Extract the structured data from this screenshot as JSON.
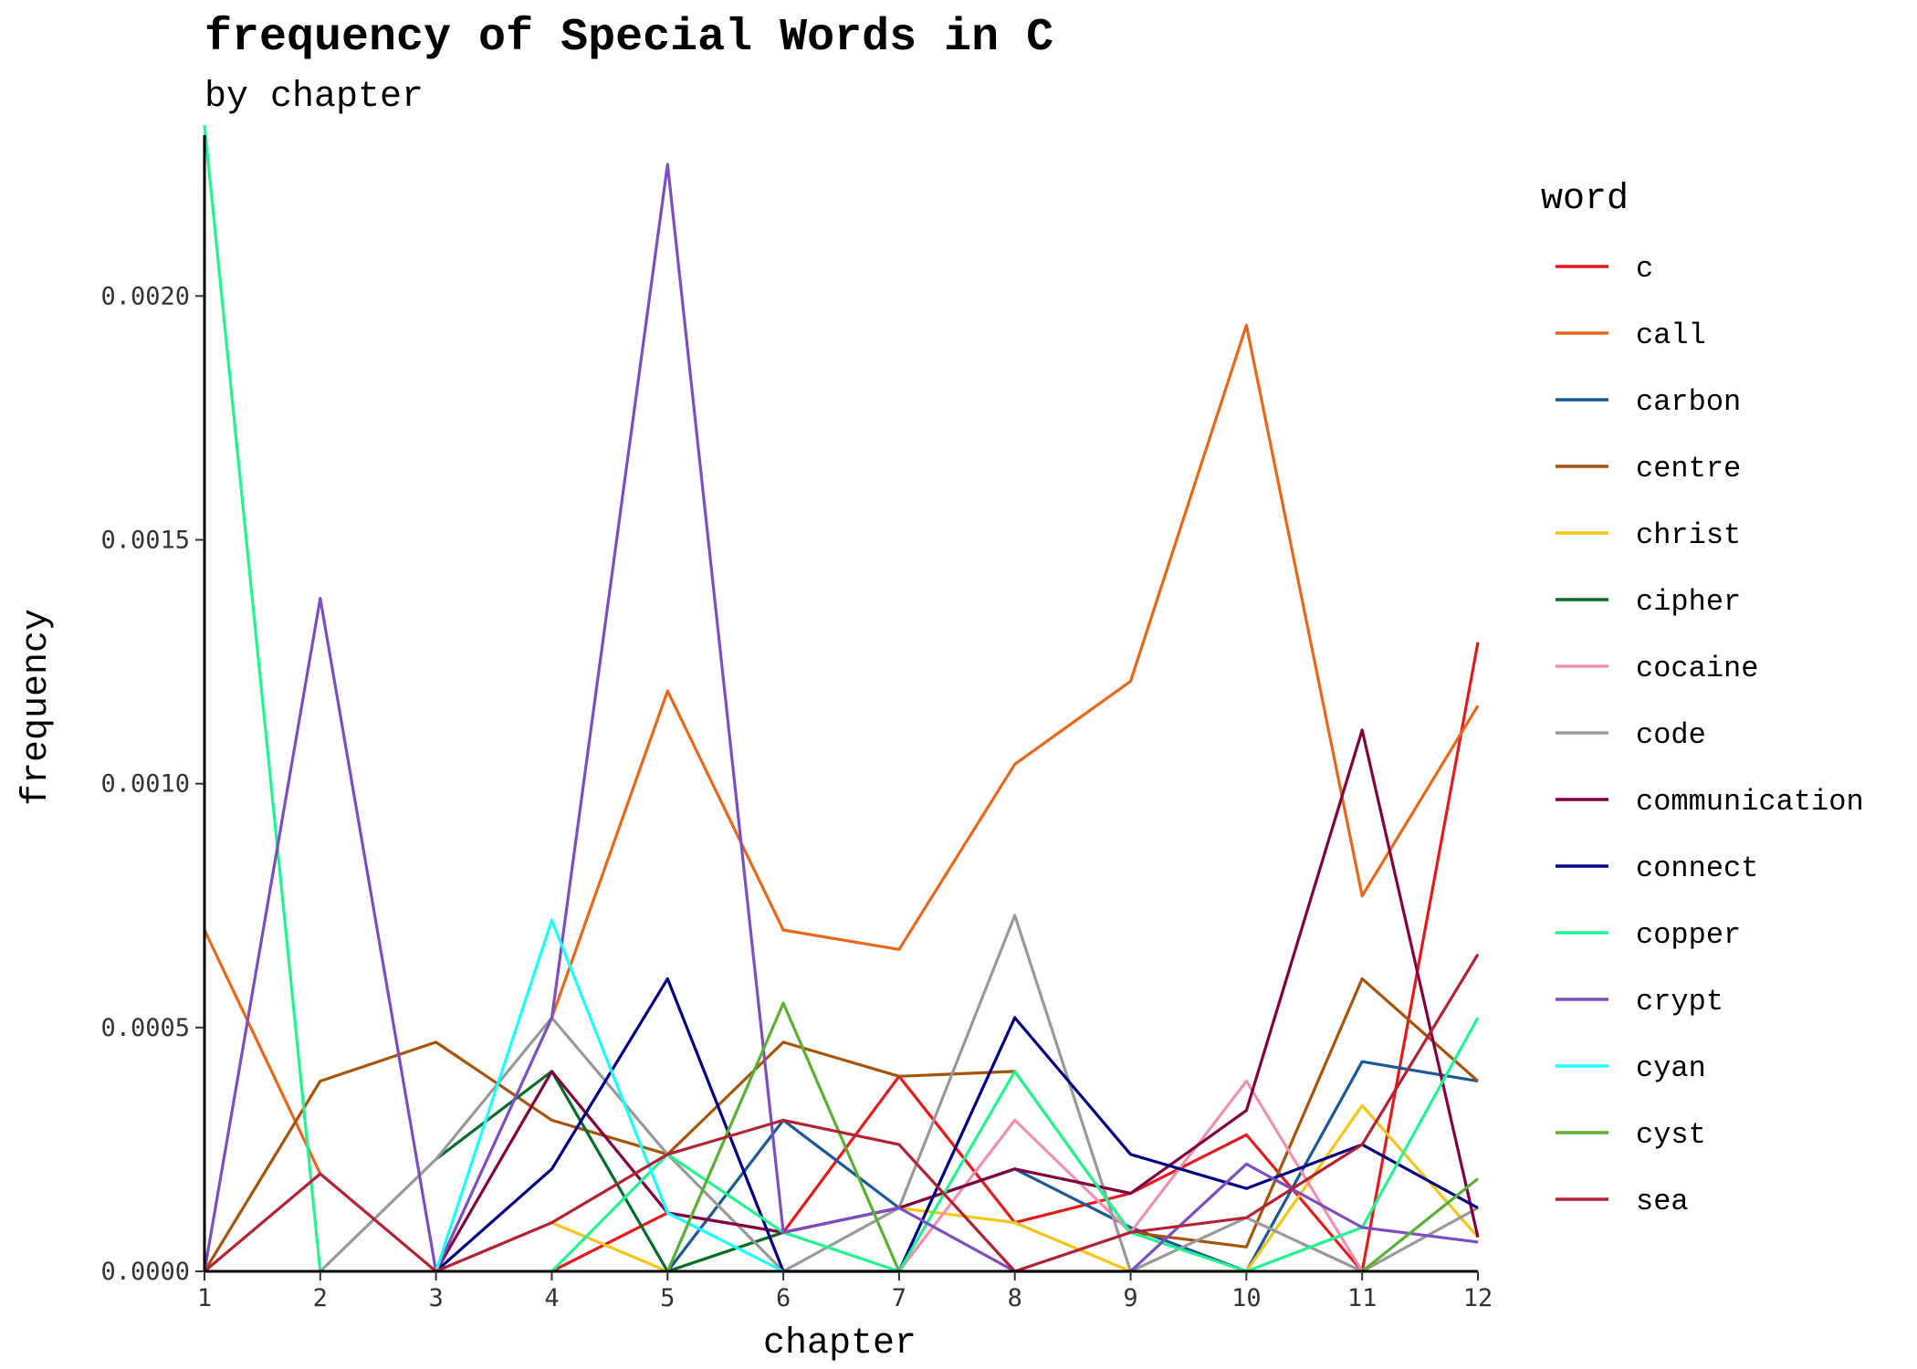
{
  "chart_data": {
    "type": "line",
    "title": "frequency of Special Words in C",
    "subtitle": "by chapter",
    "xlabel": "chapter",
    "ylabel": "frequency",
    "legend_title": "word",
    "legend_position": "right",
    "grid": false,
    "x": [
      1,
      2,
      3,
      4,
      5,
      6,
      7,
      8,
      9,
      10,
      11,
      12
    ],
    "xlim": [
      1,
      12
    ],
    "ylim": [
      0,
      0.00233
    ],
    "x_ticks": [
      "1",
      "2",
      "3",
      "4",
      "5",
      "6",
      "7",
      "8",
      "9",
      "10",
      "11",
      "12"
    ],
    "y_ticks": [
      {
        "value": 0,
        "label": "0.0000"
      },
      {
        "value": 0.0005,
        "label": "0.0005"
      },
      {
        "value": 0.001,
        "label": "0.0010"
      },
      {
        "value": 0.0015,
        "label": "0.0015"
      },
      {
        "value": 0.002,
        "label": "0.0020"
      }
    ],
    "series": [
      {
        "name": "c",
        "color": "#e41a1c",
        "values": [
          0,
          null,
          null,
          0,
          0.00012,
          8e-05,
          0.0004,
          0.0001,
          0.00016,
          0.00028,
          0,
          0.00129
        ]
      },
      {
        "name": "call",
        "color": "#e8681a",
        "values": [
          0.0007,
          0.0002,
          null,
          0.00052,
          0.00119,
          0.0007,
          0.00066,
          0.00104,
          0.00121,
          0.00194,
          0.00077,
          0.00116
        ]
      },
      {
        "name": "carbon",
        "color": "#1a5896",
        "values": [
          null,
          null,
          null,
          null,
          0,
          0.00031,
          0.00013,
          0.00021,
          9e-05,
          0,
          0.00043,
          0.00039
        ]
      },
      {
        "name": "centre",
        "color": "#a65409",
        "values": [
          0,
          0.00039,
          0.00047,
          0.00031,
          0.00024,
          0.00047,
          0.0004,
          0.00041,
          8e-05,
          5e-05,
          0.0006,
          0.00039
        ]
      },
      {
        "name": "christ",
        "color": "#f5c518",
        "values": [
          null,
          null,
          null,
          0.0001,
          0,
          8e-05,
          0.00013,
          0.0001,
          0,
          0,
          0.00034,
          7e-05
        ]
      },
      {
        "name": "cipher",
        "color": "#006d2c",
        "values": [
          null,
          null,
          0.00023,
          0.00041,
          0,
          8e-05,
          null,
          null,
          null,
          null,
          null,
          null
        ]
      },
      {
        "name": "cocaine",
        "color": "#f090b0",
        "values": [
          null,
          null,
          null,
          null,
          null,
          null,
          0,
          0.00031,
          8e-05,
          0.00039,
          0,
          null
        ]
      },
      {
        "name": "code",
        "color": "#999999",
        "values": [
          null,
          0,
          0.00023,
          0.00052,
          0.00024,
          0,
          0.00013,
          0.00073,
          0,
          0.00011,
          0,
          0.00013
        ]
      },
      {
        "name": "communication",
        "color": "#800040",
        "values": [
          null,
          null,
          0,
          0.00041,
          0.00012,
          8e-05,
          0.00013,
          0.00021,
          0.00016,
          0.00033,
          0.00111,
          7e-05
        ]
      },
      {
        "name": "connect",
        "color": "#000080",
        "values": [
          null,
          null,
          0,
          0.00021,
          0.0006,
          0,
          0,
          0.00052,
          0.00024,
          0.00017,
          0.00026,
          0.00013
        ]
      },
      {
        "name": "copper",
        "color": "#22f590",
        "values": [
          0.00235,
          0,
          null,
          0,
          0.00024,
          8e-05,
          0,
          0.00041,
          8e-05,
          0,
          9e-05,
          0.00052
        ]
      },
      {
        "name": "crypt",
        "color": "#7b4fc0",
        "values": [
          0,
          0.00138,
          0,
          0.00052,
          0.00227,
          8e-05,
          0.00013,
          0,
          0,
          0.00022,
          9e-05,
          6e-05
        ]
      },
      {
        "name": "cyan",
        "color": "#1affff",
        "values": [
          null,
          null,
          0,
          0.00072,
          0.00012,
          0,
          null,
          null,
          null,
          null,
          null,
          null
        ]
      },
      {
        "name": "cyst",
        "color": "#5ab034",
        "values": [
          null,
          null,
          null,
          null,
          0,
          0.00055,
          0,
          null,
          null,
          null,
          0,
          0.00019
        ]
      },
      {
        "name": "sea",
        "color": "#b22234",
        "values": [
          0,
          0.0002,
          0,
          0.0001,
          0.00024,
          0.00031,
          0.00026,
          0,
          8e-05,
          0.00011,
          0.00026,
          0.00065
        ]
      }
    ]
  }
}
